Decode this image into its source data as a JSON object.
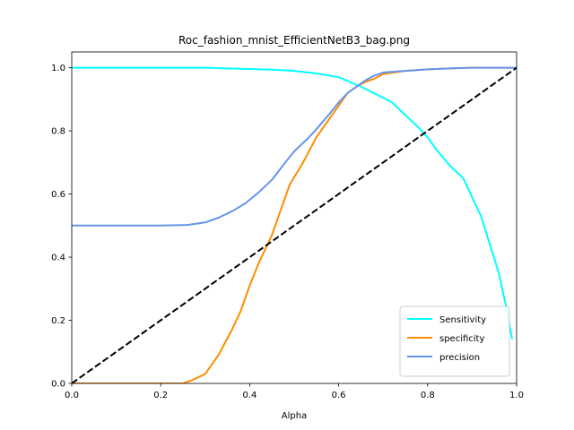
{
  "chart_data": {
    "type": "line",
    "title": "Roc_fashion_mnist_EfficientNetB3_bag.png",
    "xlabel": "Alpha",
    "ylabel": "",
    "xlim": [
      0,
      1
    ],
    "ylim": [
      0,
      1.05
    ],
    "xticks": [
      "0.0",
      "0.2",
      "0.4",
      "0.6",
      "0.8",
      "1.0"
    ],
    "yticks": [
      "0.0",
      "0.2",
      "0.4",
      "0.6",
      "0.8",
      "1.0"
    ],
    "grid": false,
    "legend_position": "lower-right",
    "series": [
      {
        "name": "Sensitivity",
        "color": "#00ffff",
        "x": [
          0,
          0.1,
          0.2,
          0.3,
          0.35,
          0.4,
          0.45,
          0.5,
          0.55,
          0.6,
          0.65,
          0.7,
          0.72,
          0.75,
          0.78,
          0.8,
          0.82,
          0.85,
          0.88,
          0.9,
          0.92,
          0.94,
          0.96,
          0.98,
          0.99
        ],
        "y": [
          1.0,
          1.0,
          1.0,
          1.0,
          0.998,
          0.996,
          0.994,
          0.99,
          0.982,
          0.97,
          0.94,
          0.905,
          0.89,
          0.85,
          0.81,
          0.78,
          0.74,
          0.69,
          0.65,
          0.59,
          0.53,
          0.44,
          0.35,
          0.22,
          0.14
        ]
      },
      {
        "name": "specificity",
        "color": "#ff8c00",
        "x": [
          0,
          0.1,
          0.2,
          0.25,
          0.27,
          0.3,
          0.33,
          0.36,
          0.38,
          0.4,
          0.42,
          0.45,
          0.47,
          0.49,
          0.52,
          0.55,
          0.58,
          0.6,
          0.62,
          0.64,
          0.66,
          0.68,
          0.7,
          0.75,
          0.8,
          0.85,
          0.9,
          1.0
        ],
        "y": [
          0,
          0,
          0,
          0,
          0.01,
          0.03,
          0.09,
          0.17,
          0.23,
          0.31,
          0.38,
          0.47,
          0.55,
          0.63,
          0.7,
          0.78,
          0.84,
          0.88,
          0.92,
          0.94,
          0.955,
          0.965,
          0.98,
          0.99,
          0.995,
          0.998,
          1.0,
          1.0
        ]
      },
      {
        "name": "precision",
        "color": "#6495ed",
        "x": [
          0,
          0.1,
          0.2,
          0.26,
          0.3,
          0.33,
          0.36,
          0.39,
          0.42,
          0.45,
          0.48,
          0.5,
          0.53,
          0.55,
          0.58,
          0.6,
          0.62,
          0.64,
          0.66,
          0.68,
          0.7,
          0.75,
          0.8,
          0.85,
          0.9,
          1.0
        ],
        "y": [
          0.5,
          0.5,
          0.5,
          0.502,
          0.51,
          0.525,
          0.545,
          0.57,
          0.605,
          0.645,
          0.7,
          0.735,
          0.775,
          0.805,
          0.855,
          0.89,
          0.92,
          0.94,
          0.96,
          0.975,
          0.985,
          0.99,
          0.995,
          0.998,
          1.0,
          1.0
        ]
      },
      {
        "name": "",
        "color": "#000000",
        "dashed": true,
        "x": [
          0,
          1
        ],
        "y": [
          0,
          1
        ]
      }
    ]
  }
}
